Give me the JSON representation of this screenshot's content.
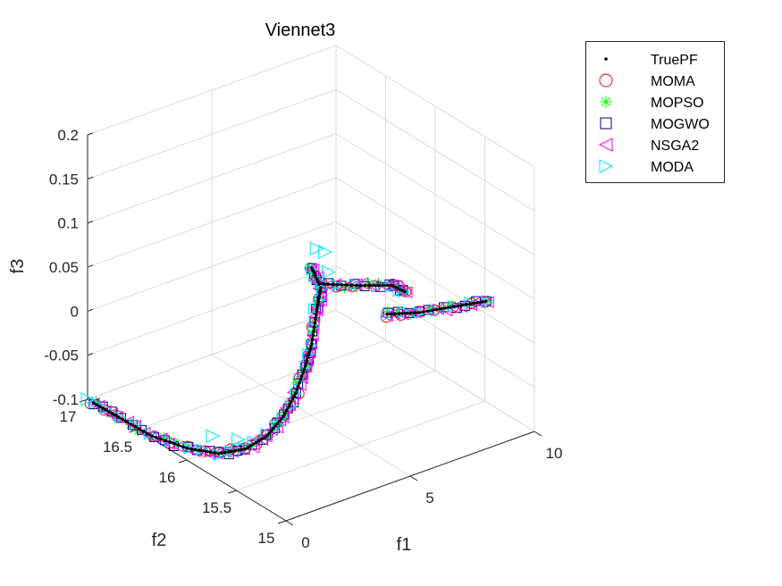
{
  "chart_data": {
    "type": "scatter",
    "subtype": "3d-scatter",
    "title": "Viennet3",
    "xlabel": "f1",
    "ylabel": "f2",
    "zlabel": "f3",
    "xlim": [
      0,
      10
    ],
    "ylim": [
      15,
      17
    ],
    "zlim": [
      -0.1,
      0.2
    ],
    "xticks": [
      "0",
      "5",
      "10"
    ],
    "xtick_values": [
      0,
      5,
      10
    ],
    "yticks": [
      "15",
      "15.5",
      "16",
      "16.5",
      "17"
    ],
    "ytick_values": [
      15,
      15.5,
      16,
      16.5,
      17
    ],
    "zticks": [
      "-0.1",
      "-0.05",
      "0",
      "0.05",
      "0.1",
      "0.15",
      "0.2"
    ],
    "ztick_values": [
      -0.1,
      -0.05,
      0,
      0.05,
      0.1,
      0.15,
      0.2
    ],
    "grid": true,
    "legend_position": "outside-top-right",
    "front_segments": [
      [
        [
          0.0,
          16.94,
          -0.1
        ],
        [
          0.05,
          16.7,
          -0.1
        ],
        [
          0.11,
          16.38,
          -0.1
        ],
        [
          0.5,
          16.12,
          -0.1
        ],
        [
          1.0,
          15.93,
          -0.098
        ],
        [
          1.75,
          15.85,
          -0.095
        ],
        [
          2.68,
          15.86,
          -0.09
        ],
        [
          3.53,
          15.91,
          -0.08
        ],
        [
          4.27,
          15.97,
          -0.065
        ],
        [
          4.89,
          16.03,
          -0.045
        ],
        [
          5.43,
          16.1,
          -0.03
        ],
        [
          5.83,
          16.15,
          0.0
        ],
        [
          6.15,
          16.19,
          0.02
        ]
      ],
      [
        [
          5.83,
          16.2,
          0.045
        ],
        [
          5.72,
          16.1,
          0.035
        ],
        [
          6.78,
          15.99,
          0.03
        ],
        [
          7.68,
          15.86,
          0.03
        ],
        [
          7.94,
          15.79,
          0.025
        ]
      ],
      [
        [
          7.47,
          15.85,
          0.0
        ],
        [
          8.33,
          15.75,
          0.0
        ],
        [
          9.49,
          15.68,
          0.0
        ],
        [
          9.96,
          15.48,
          0.015
        ]
      ]
    ],
    "series": [
      {
        "name": "TruePF",
        "marker": "dot",
        "color": "#000000",
        "follows_front": true,
        "density": 8
      },
      {
        "name": "MOMA",
        "marker": "circle",
        "color": "#ff0000",
        "follows_front": true,
        "density": 2
      },
      {
        "name": "MOPSO",
        "marker": "asterisk",
        "color": "#00ff00",
        "follows_front": true,
        "density": 3
      },
      {
        "name": "MOGWO",
        "marker": "square",
        "color": "#00008b",
        "follows_front": true,
        "density": 3
      },
      {
        "name": "NSGA2",
        "marker": "triangle-left",
        "color": "#ff00ff",
        "follows_front": true,
        "density": 4
      },
      {
        "name": "MODA",
        "marker": "triangle-right",
        "color": "#00e5ff",
        "follows_front": true,
        "density": 2,
        "extra_points": [
          [
            6.02,
            16.2,
            0.065
          ],
          [
            6.28,
            16.18,
            0.06
          ],
          [
            5.9,
            16.05,
            0.05
          ],
          [
            1.28,
            16.06,
            -0.09
          ],
          [
            1.79,
            15.93,
            -0.09
          ],
          [
            0.0,
            17.0,
            -0.1
          ]
        ]
      }
    ]
  }
}
